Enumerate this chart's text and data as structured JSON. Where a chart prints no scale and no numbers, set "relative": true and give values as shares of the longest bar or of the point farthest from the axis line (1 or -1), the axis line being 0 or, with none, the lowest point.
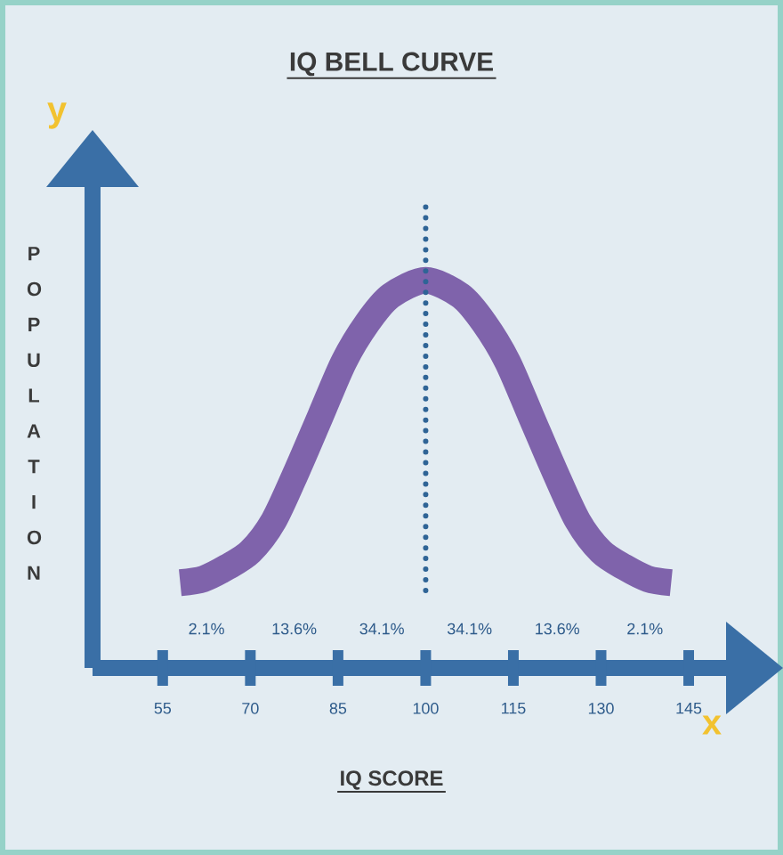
{
  "chart_data": {
    "type": "line",
    "title": "IQ BELL CURVE",
    "xlabel": "IQ SCORE",
    "ylabel": "P O P U L A T I O N",
    "relative": true,
    "x": [
      58,
      62,
      66,
      70,
      74,
      78,
      82,
      86,
      90,
      94,
      100,
      106,
      110,
      114,
      118,
      122,
      126,
      130,
      134,
      138,
      142
    ],
    "values": [
      0.22,
      0.23,
      0.26,
      0.3,
      0.38,
      0.51,
      0.65,
      0.79,
      0.89,
      0.96,
      1,
      0.96,
      0.89,
      0.79,
      0.65,
      0.51,
      0.38,
      0.3,
      0.26,
      0.23,
      0.22
    ],
    "color": "#7f63ab",
    "xlim": [
      43,
      152
    ],
    "xticks": [
      55,
      70,
      85,
      100,
      115,
      130,
      145
    ],
    "ref_lines": [
      {
        "axis": "x",
        "value": 100,
        "color": "#2f6496",
        "line_style": "dotted"
      }
    ],
    "annotations": [
      "y",
      "x",
      "2.1%",
      "13.6%",
      "34.1%",
      "34.1%",
      "13.6%",
      "2.1%"
    ]
  }
}
